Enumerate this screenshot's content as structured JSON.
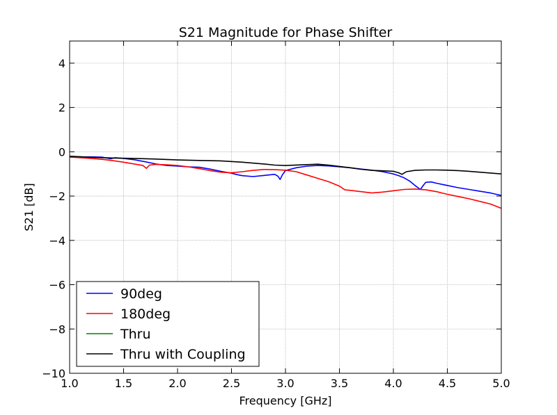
{
  "chart_data": {
    "type": "line",
    "title": "S21 Magnitude for Phase Shifter",
    "xlabel": "Frequency [GHz]",
    "ylabel": "S21 [dB]",
    "xlim": [
      1.0,
      5.0
    ],
    "ylim": [
      -10,
      5
    ],
    "xticks": [
      1.0,
      1.5,
      2.0,
      2.5,
      3.0,
      3.5,
      4.0,
      4.5,
      5.0
    ],
    "xtick_labels": [
      "1.0",
      "1.5",
      "2.0",
      "2.5",
      "3.0",
      "3.5",
      "4.0",
      "4.5",
      "5.0"
    ],
    "yticks": [
      -10,
      -8,
      -6,
      -4,
      -2,
      0,
      2,
      4
    ],
    "ytick_labels": [
      "−10",
      "−8",
      "−6",
      "−4",
      "−2",
      "0",
      "2",
      "4"
    ],
    "grid": true,
    "legend_position": "lower-left",
    "series": [
      {
        "name": "90deg",
        "color": "#0000ff",
        "x": [
          1.0,
          1.1,
          1.2,
          1.3,
          1.38,
          1.42,
          1.5,
          1.6,
          1.7,
          1.8,
          1.9,
          2.0,
          2.1,
          2.2,
          2.3,
          2.4,
          2.5,
          2.55,
          2.6,
          2.7,
          2.8,
          2.9,
          2.93,
          2.95,
          2.97,
          3.0,
          3.1,
          3.2,
          3.3,
          3.4,
          3.5,
          3.6,
          3.7,
          3.8,
          3.9,
          4.0,
          4.05,
          4.1,
          4.15,
          4.2,
          4.25,
          4.28,
          4.3,
          4.35,
          4.4,
          4.5,
          4.6,
          4.7,
          4.8,
          4.9,
          5.0
        ],
        "y": [
          -0.24,
          -0.23,
          -0.23,
          -0.24,
          -0.32,
          -0.27,
          -0.3,
          -0.36,
          -0.45,
          -0.55,
          -0.62,
          -0.65,
          -0.68,
          -0.7,
          -0.78,
          -0.88,
          -0.97,
          -1.03,
          -1.08,
          -1.12,
          -1.07,
          -1.02,
          -1.1,
          -1.25,
          -1.05,
          -0.85,
          -0.72,
          -0.65,
          -0.62,
          -0.64,
          -0.68,
          -0.72,
          -0.78,
          -0.83,
          -0.9,
          -1.0,
          -1.08,
          -1.18,
          -1.32,
          -1.52,
          -1.7,
          -1.5,
          -1.38,
          -1.36,
          -1.42,
          -1.52,
          -1.62,
          -1.7,
          -1.78,
          -1.86,
          -1.97
        ]
      },
      {
        "name": "180deg",
        "color": "#ff0000",
        "x": [
          1.0,
          1.1,
          1.2,
          1.3,
          1.4,
          1.5,
          1.6,
          1.68,
          1.71,
          1.74,
          1.8,
          1.9,
          2.0,
          2.1,
          2.2,
          2.3,
          2.4,
          2.5,
          2.6,
          2.7,
          2.8,
          2.9,
          3.0,
          3.1,
          3.2,
          3.3,
          3.4,
          3.5,
          3.55,
          3.6,
          3.7,
          3.8,
          3.9,
          4.0,
          4.1,
          4.2,
          4.3,
          4.4,
          4.5,
          4.6,
          4.7,
          4.8,
          4.9,
          5.0
        ],
        "y": [
          -0.24,
          -0.27,
          -0.3,
          -0.34,
          -0.4,
          -0.47,
          -0.55,
          -0.62,
          -0.75,
          -0.6,
          -0.57,
          -0.59,
          -0.62,
          -0.68,
          -0.76,
          -0.85,
          -0.92,
          -0.95,
          -0.9,
          -0.84,
          -0.8,
          -0.81,
          -0.83,
          -0.9,
          -1.05,
          -1.2,
          -1.35,
          -1.55,
          -1.72,
          -1.74,
          -1.8,
          -1.86,
          -1.82,
          -1.76,
          -1.7,
          -1.68,
          -1.72,
          -1.8,
          -1.92,
          -2.02,
          -2.12,
          -2.24,
          -2.36,
          -2.55
        ]
      },
      {
        "name": "Thru",
        "color": "#008000",
        "x": [],
        "y": []
      },
      {
        "name": "Thru with Coupling",
        "color": "#000000",
        "x": [
          1.0,
          1.2,
          1.4,
          1.6,
          1.8,
          2.0,
          2.2,
          2.4,
          2.6,
          2.8,
          2.9,
          3.0,
          3.2,
          3.3,
          3.4,
          3.5,
          3.6,
          3.7,
          3.8,
          3.9,
          4.0,
          4.05,
          4.08,
          4.12,
          4.2,
          4.3,
          4.4,
          4.5,
          4.6,
          4.7,
          4.8,
          4.9,
          5.0
        ],
        "y": [
          -0.2,
          -0.25,
          -0.28,
          -0.3,
          -0.33,
          -0.37,
          -0.39,
          -0.41,
          -0.47,
          -0.55,
          -0.6,
          -0.62,
          -0.58,
          -0.56,
          -0.6,
          -0.66,
          -0.72,
          -0.79,
          -0.84,
          -0.86,
          -0.88,
          -0.95,
          -1.02,
          -0.9,
          -0.84,
          -0.82,
          -0.82,
          -0.83,
          -0.85,
          -0.88,
          -0.92,
          -0.96,
          -1.0
        ]
      }
    ]
  }
}
